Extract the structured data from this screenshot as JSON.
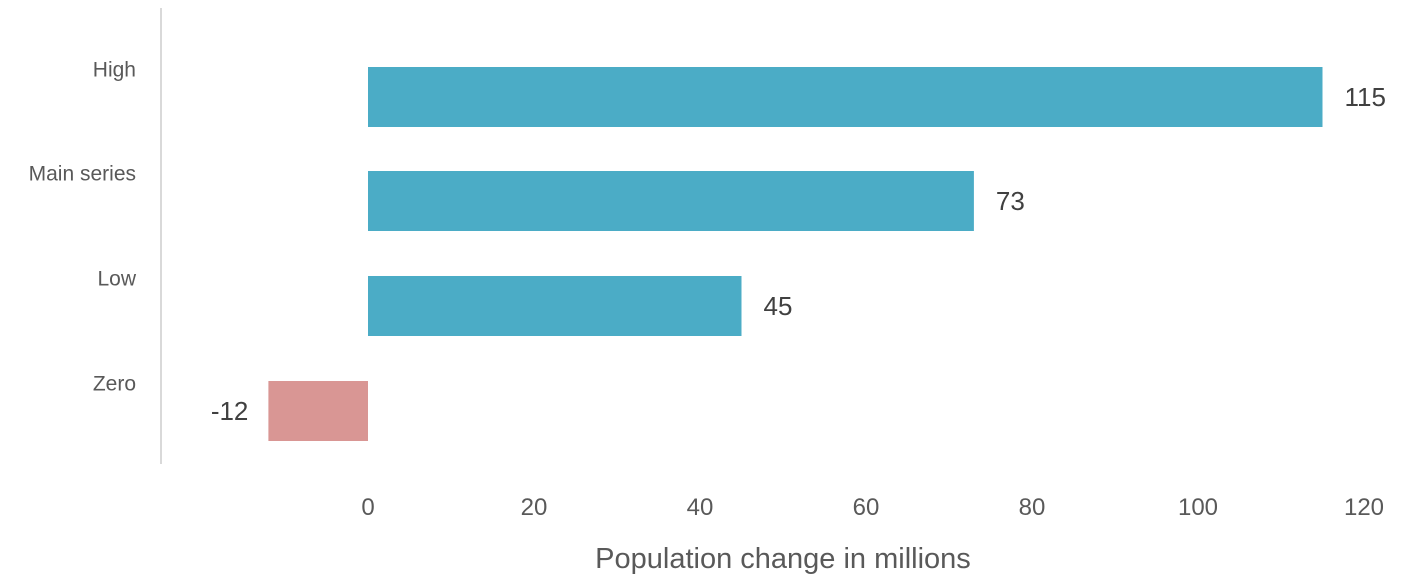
{
  "chart_data": {
    "type": "bar",
    "orientation": "horizontal",
    "title": "",
    "xlabel": "Population change in millions",
    "ylabel": "",
    "categories": [
      "High",
      "Main series",
      "Low",
      "Zero"
    ],
    "values": [
      115,
      73,
      45,
      -12
    ],
    "data_labels": [
      "115",
      "73",
      "45",
      "-12"
    ],
    "x_ticks": [
      0,
      20,
      40,
      60,
      80,
      100,
      120
    ],
    "x_tick_labels": [
      "0",
      "20",
      "40",
      "60",
      "80",
      "100",
      "120"
    ],
    "xlim": [
      -12,
      120
    ],
    "grid": false,
    "legend": "none",
    "colors": {
      "positive": "#4bacc6",
      "negative": "#d99694",
      "axis_line": "#d9d9d9"
    }
  }
}
